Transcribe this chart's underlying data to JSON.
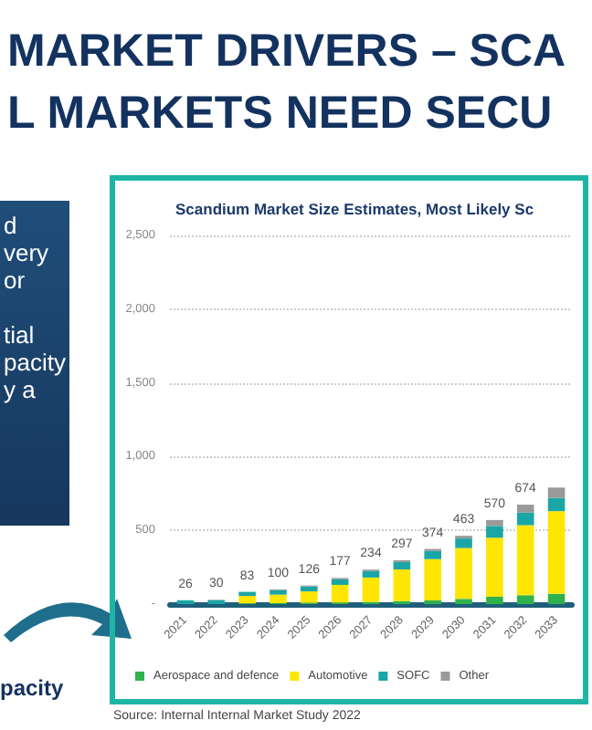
{
  "chart_data": {
    "type": "bar",
    "title": "Scandium Market Size Estimates, Most Likely Sc",
    "stacked": true,
    "categories": [
      "2021",
      "2022",
      "2023",
      "2024",
      "2025",
      "2026",
      "2027",
      "2028",
      "2029",
      "2030",
      "2031",
      "2032",
      "2033"
    ],
    "series": [
      {
        "name": "Aerospace and defence",
        "color": "#2fb24b",
        "values": [
          null,
          null,
          5,
          6,
          8,
          10,
          15,
          20,
          25,
          35,
          50,
          60,
          70
        ]
      },
      {
        "name": "Automotive",
        "color": "#ffe600",
        "values": [
          0,
          0,
          50,
          58,
          78,
          120,
          165,
          215,
          280,
          345,
          400,
          475,
          560
        ]
      },
      {
        "name": "SOFC",
        "color": "#1ba6a6",
        "values": [
          26,
          27,
          28,
          30,
          33,
          38,
          44,
          50,
          55,
          65,
          80,
          85,
          90
        ]
      },
      {
        "name": "Other",
        "color": "#999999",
        "values": [
          null,
          3,
          null,
          6,
          7,
          9,
          10,
          12,
          14,
          18,
          40,
          54,
          70
        ]
      }
    ],
    "totals": [
      "26",
      "30",
      "83",
      "100",
      "126",
      "177",
      "234",
      "297",
      "374",
      "463",
      "570",
      "674",
      null
    ],
    "ylim": [
      0,
      2500
    ],
    "yticks": [
      {
        "value": 0,
        "label": "-"
      },
      500,
      {
        "value": 1000,
        "label": "1,000"
      },
      {
        "value": 1500,
        "label": "1,500"
      },
      {
        "value": 2000,
        "label": "2,000"
      },
      {
        "value": 2500,
        "label": "2,500"
      }
    ],
    "grid": "y",
    "legend": "bottom",
    "annotations": [
      "MARKET DRIVERS – SCA",
      "L MARKETS NEED SECU",
      "d\nvery\nor\n\ntial\npacity\ny a",
      "pacity",
      "Source: Internal Internal Market Study 2022"
    ]
  }
}
